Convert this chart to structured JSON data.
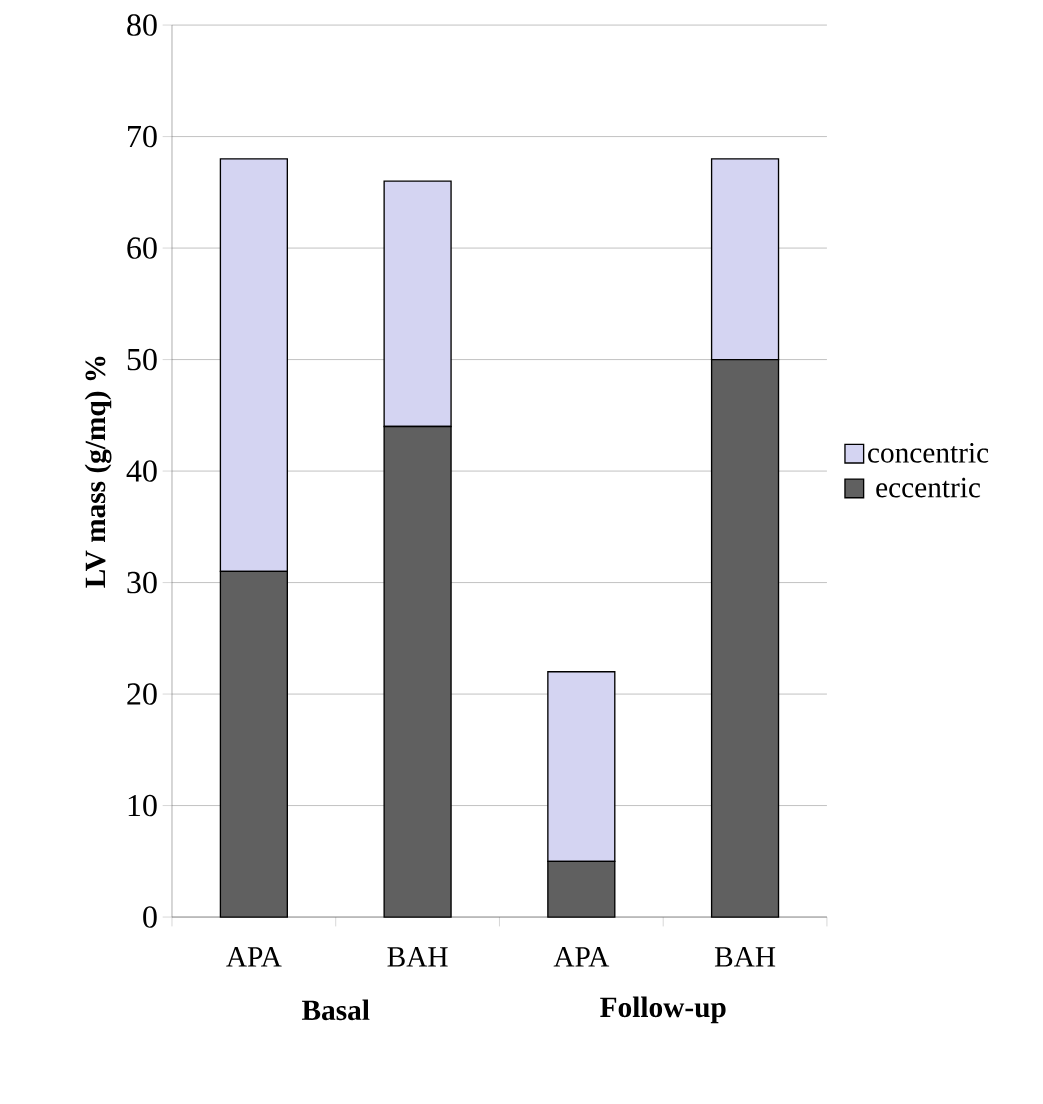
{
  "chart_data": {
    "type": "bar",
    "stacked": true,
    "ylabel": "LV mass (g/mq) %",
    "categories": [
      "APA",
      "BAH",
      "APA",
      "BAH"
    ],
    "series": [
      {
        "name": "eccentric",
        "color": "#606060",
        "values": [
          31,
          44,
          5,
          50
        ]
      },
      {
        "name": "concentric",
        "color": "#d4d4f2",
        "values": [
          37,
          22,
          17,
          18
        ]
      }
    ],
    "ylim": [
      0,
      80
    ],
    "yticks": [
      0,
      10,
      20,
      30,
      40,
      50,
      60,
      70,
      80
    ],
    "grid": "y",
    "legend": "right",
    "annotations": [
      "Basal",
      "Follow-up"
    ]
  }
}
